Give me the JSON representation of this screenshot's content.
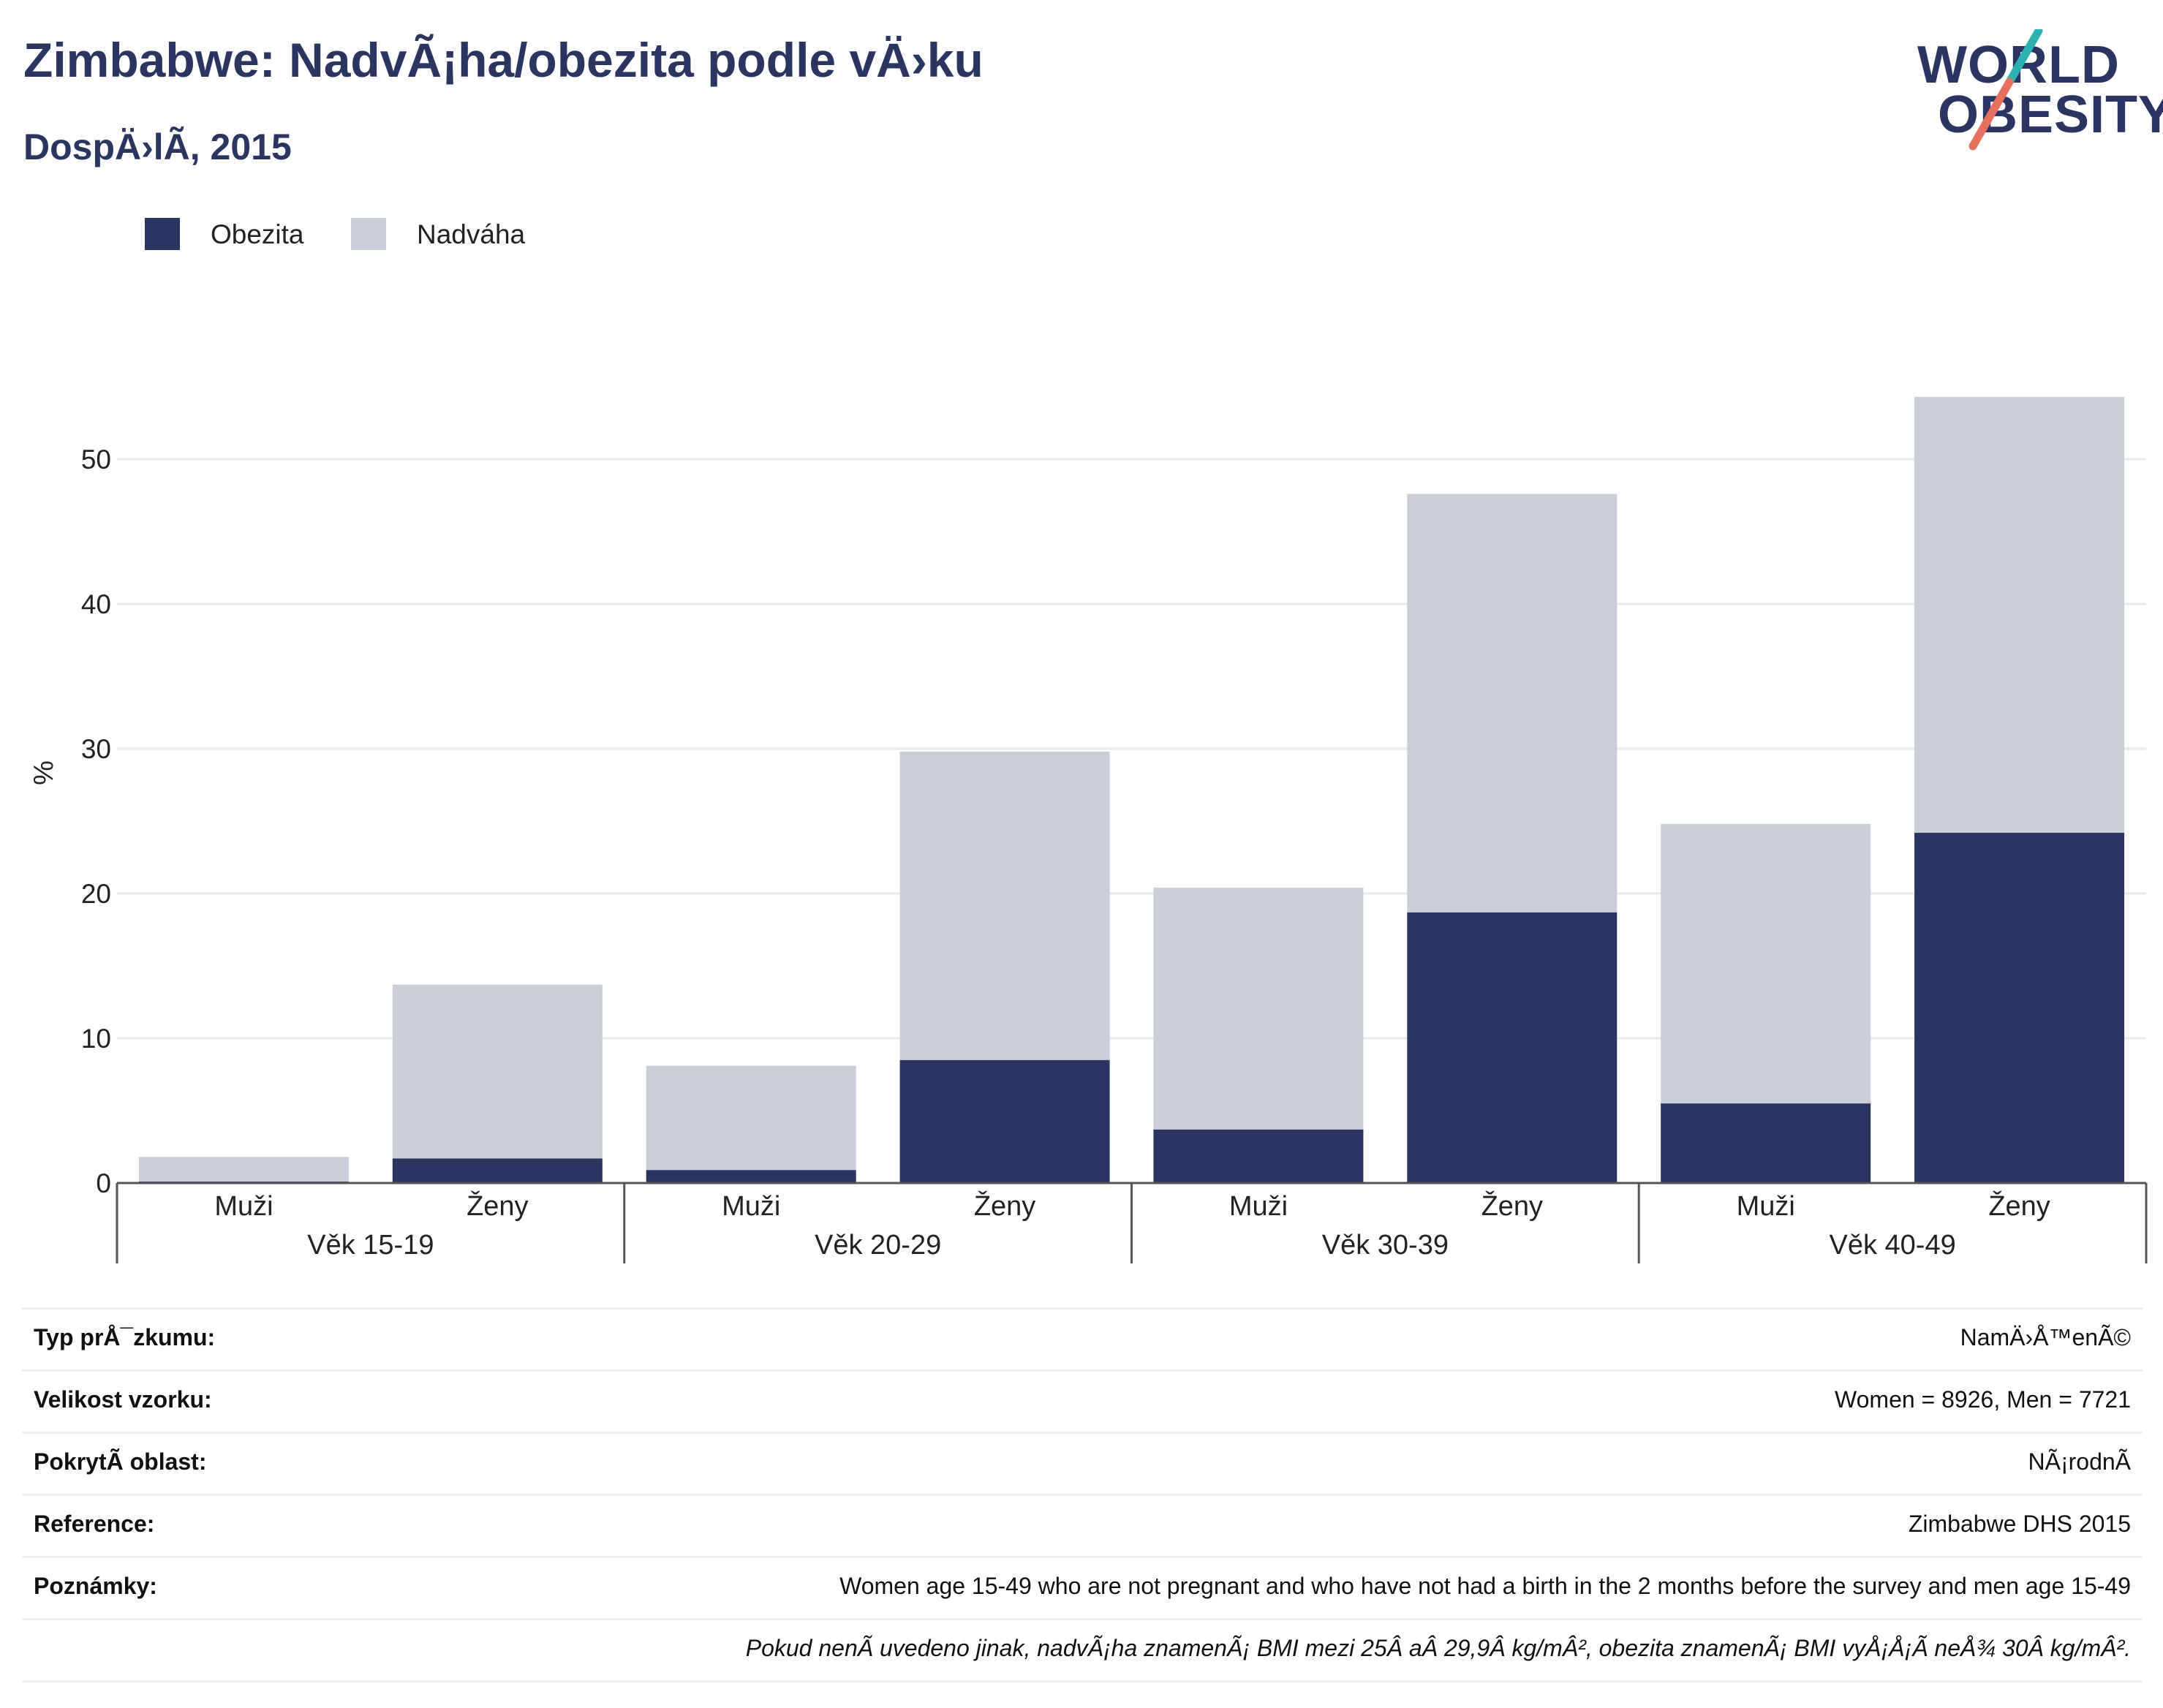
{
  "header": {
    "title": "Zimbabwe: NadvÃ¡ha/obezita podle vÄ›ku",
    "subtitle": "DospÄ›lÃ­, 2015"
  },
  "logo": {
    "line1": "WORLD",
    "line2": "OBESITY",
    "accent_colors": [
      "#2bb3b1",
      "#e8705f"
    ]
  },
  "colors": {
    "obesity": "#2a3561",
    "overweight": "#cbcdd9",
    "grid": "#e9eaef",
    "axis": "#555555"
  },
  "chart_data": {
    "type": "bar",
    "stacked": true,
    "ylabel": "%",
    "ylim": [
      0,
      55
    ],
    "yticks": [
      0,
      10,
      20,
      30,
      40,
      50
    ],
    "legend_position": "top-left",
    "grid": true,
    "groups": [
      "Věk 15-19",
      "Věk 20-29",
      "Věk 30-39",
      "Věk 40-49"
    ],
    "categories": [
      "Muži",
      "Ženy",
      "Muži",
      "Ženy",
      "Muži",
      "Ženy",
      "Muži",
      "Ženy"
    ],
    "series": [
      {
        "name": "Obezita",
        "values": [
          0.1,
          1.7,
          0.9,
          8.5,
          3.7,
          18.7,
          5.5,
          24.2
        ]
      },
      {
        "name": "Nadváha",
        "values": [
          1.7,
          12.0,
          7.2,
          21.3,
          16.7,
          28.9,
          19.3,
          30.1
        ]
      }
    ]
  },
  "info": {
    "rows": [
      {
        "label": "Typ prÅ¯zkumu:",
        "value": "NamÄ›Å™enÃ©"
      },
      {
        "label": "Velikost vzorku:",
        "value": "Women = 8926, Men = 7721"
      },
      {
        "label": "PokrytÃ­ oblast:",
        "value": "NÃ¡rodnÃ­"
      },
      {
        "label": "Reference:",
        "value": "Zimbabwe DHS 2015"
      },
      {
        "label": "Poznámky:",
        "value": "Women age 15-49 who are not pregnant and who have not had a birth in the 2 months before the survey and men age 15-49"
      }
    ],
    "footnote": "Pokud nenÃ­ uvedeno jinak, nadvÃ¡ha znamenÃ¡ BMI mezi 25Â aÂ 29,9Â kg/mÂ², obezita znamenÃ¡ BMI vyÅ¡Å¡Ã­ neÅ¾ 30Â kg/mÂ²."
  }
}
